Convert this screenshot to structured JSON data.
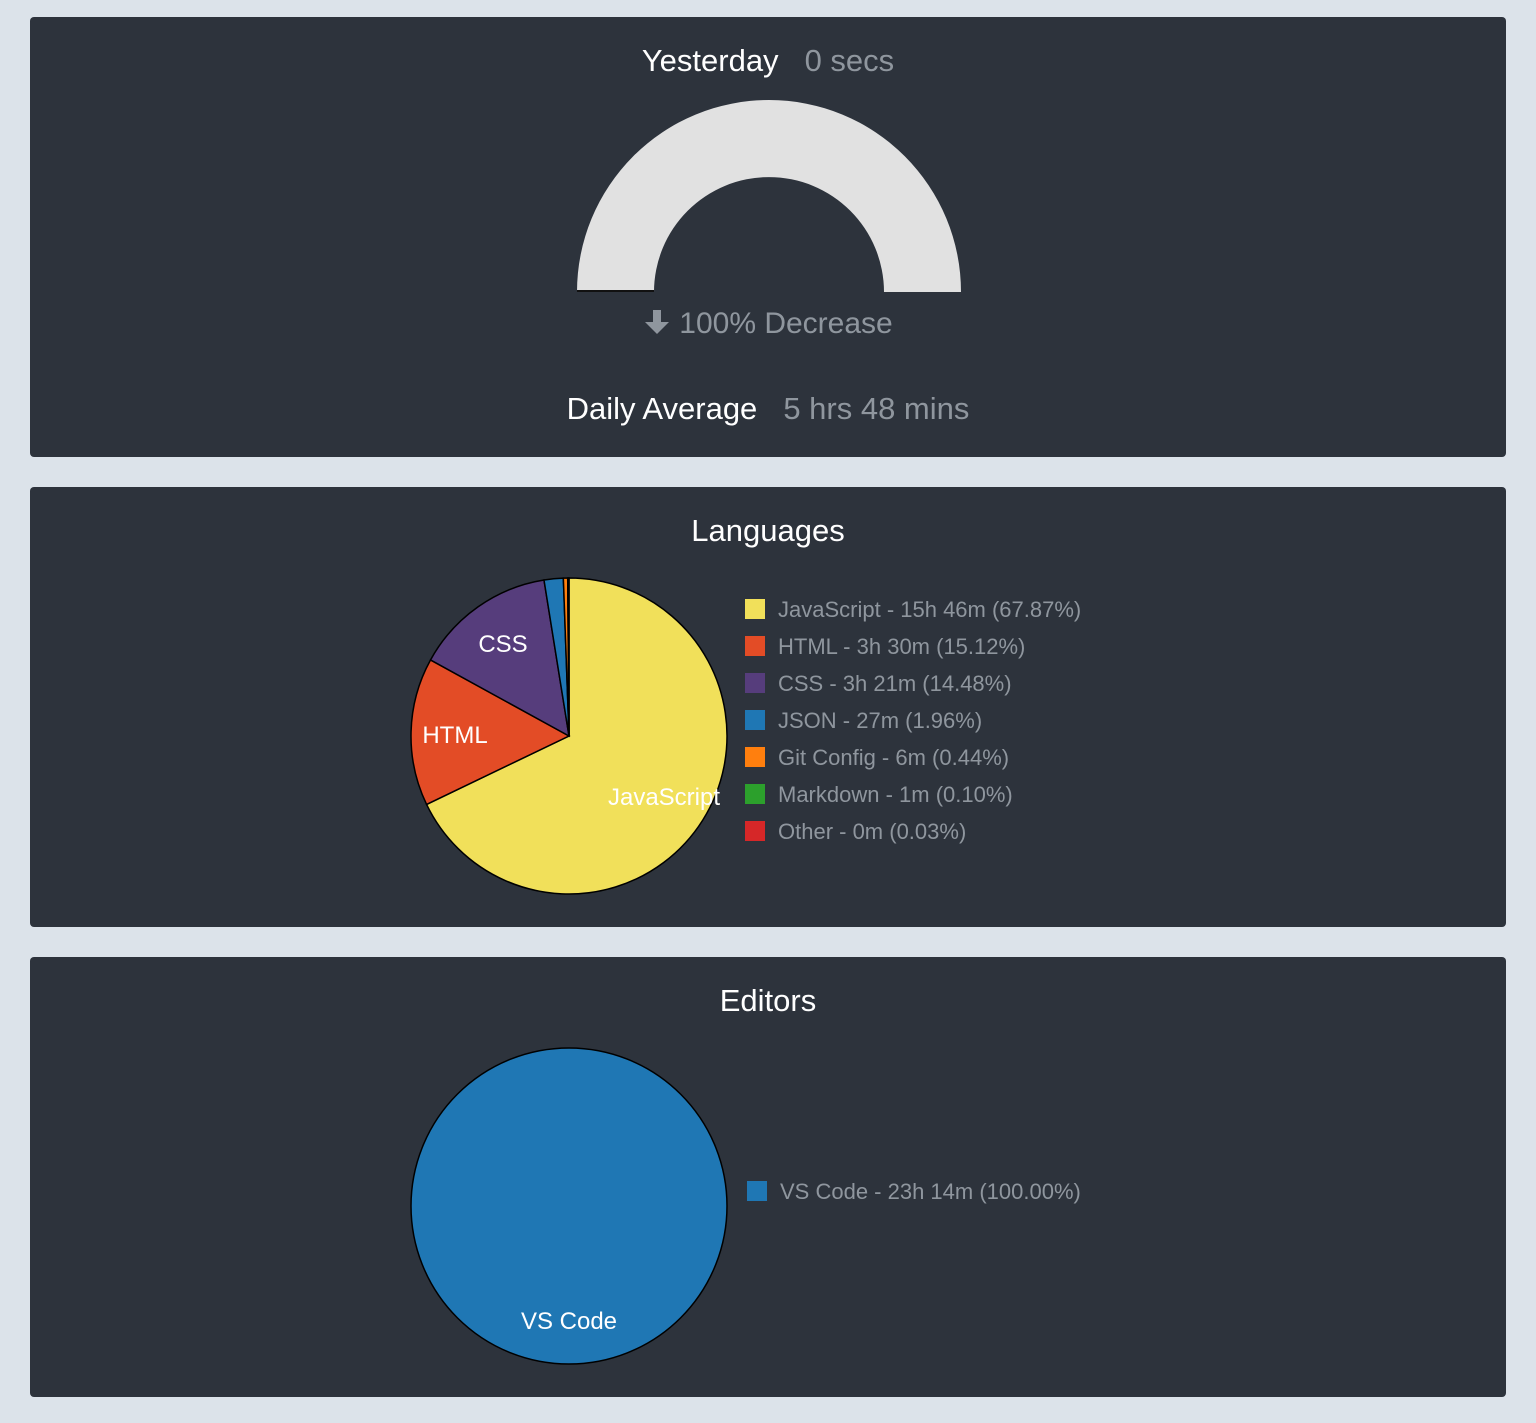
{
  "summary": {
    "yesterday_label": "Yesterday",
    "yesterday_value": "0 secs",
    "change_text": "100% Decrease",
    "daily_average_label": "Daily Average",
    "daily_average_value": "5 hrs 48 mins",
    "gauge_fraction": 0.0,
    "gauge_color": "#e1e1e1"
  },
  "languages": {
    "title": "Languages",
    "legend": [
      "JavaScript - 15h 46m (67.87%)",
      "HTML - 3h 30m (15.12%)",
      "CSS - 3h 21m (14.48%)",
      "JSON - 27m (1.96%)",
      "Git Config - 6m (0.44%)",
      "Markdown - 1m (0.10%)",
      "Other - 0m (0.03%)"
    ]
  },
  "editors": {
    "title": "Editors",
    "legend": [
      "VS Code - 23h 14m (100.00%)"
    ]
  },
  "chart_data": [
    {
      "type": "pie",
      "title": "Languages",
      "categories": [
        "JavaScript",
        "HTML",
        "CSS",
        "JSON",
        "Git Config",
        "Markdown",
        "Other"
      ],
      "values": [
        67.87,
        15.12,
        14.48,
        1.96,
        0.44,
        0.1,
        0.03
      ],
      "colors": [
        "#f1e05a",
        "#e34c26",
        "#563d7c",
        "#1f77b4",
        "#ff7f0e",
        "#2ca02c",
        "#d62728"
      ],
      "slice_labels": [
        "JavaScript",
        "HTML",
        "CSS",
        "",
        "",
        "",
        ""
      ],
      "legend_position": "right"
    },
    {
      "type": "pie",
      "title": "Editors",
      "categories": [
        "VS Code"
      ],
      "values": [
        100.0
      ],
      "colors": [
        "#1f77b4"
      ],
      "slice_labels": [
        "VS Code"
      ],
      "legend_position": "right"
    }
  ]
}
